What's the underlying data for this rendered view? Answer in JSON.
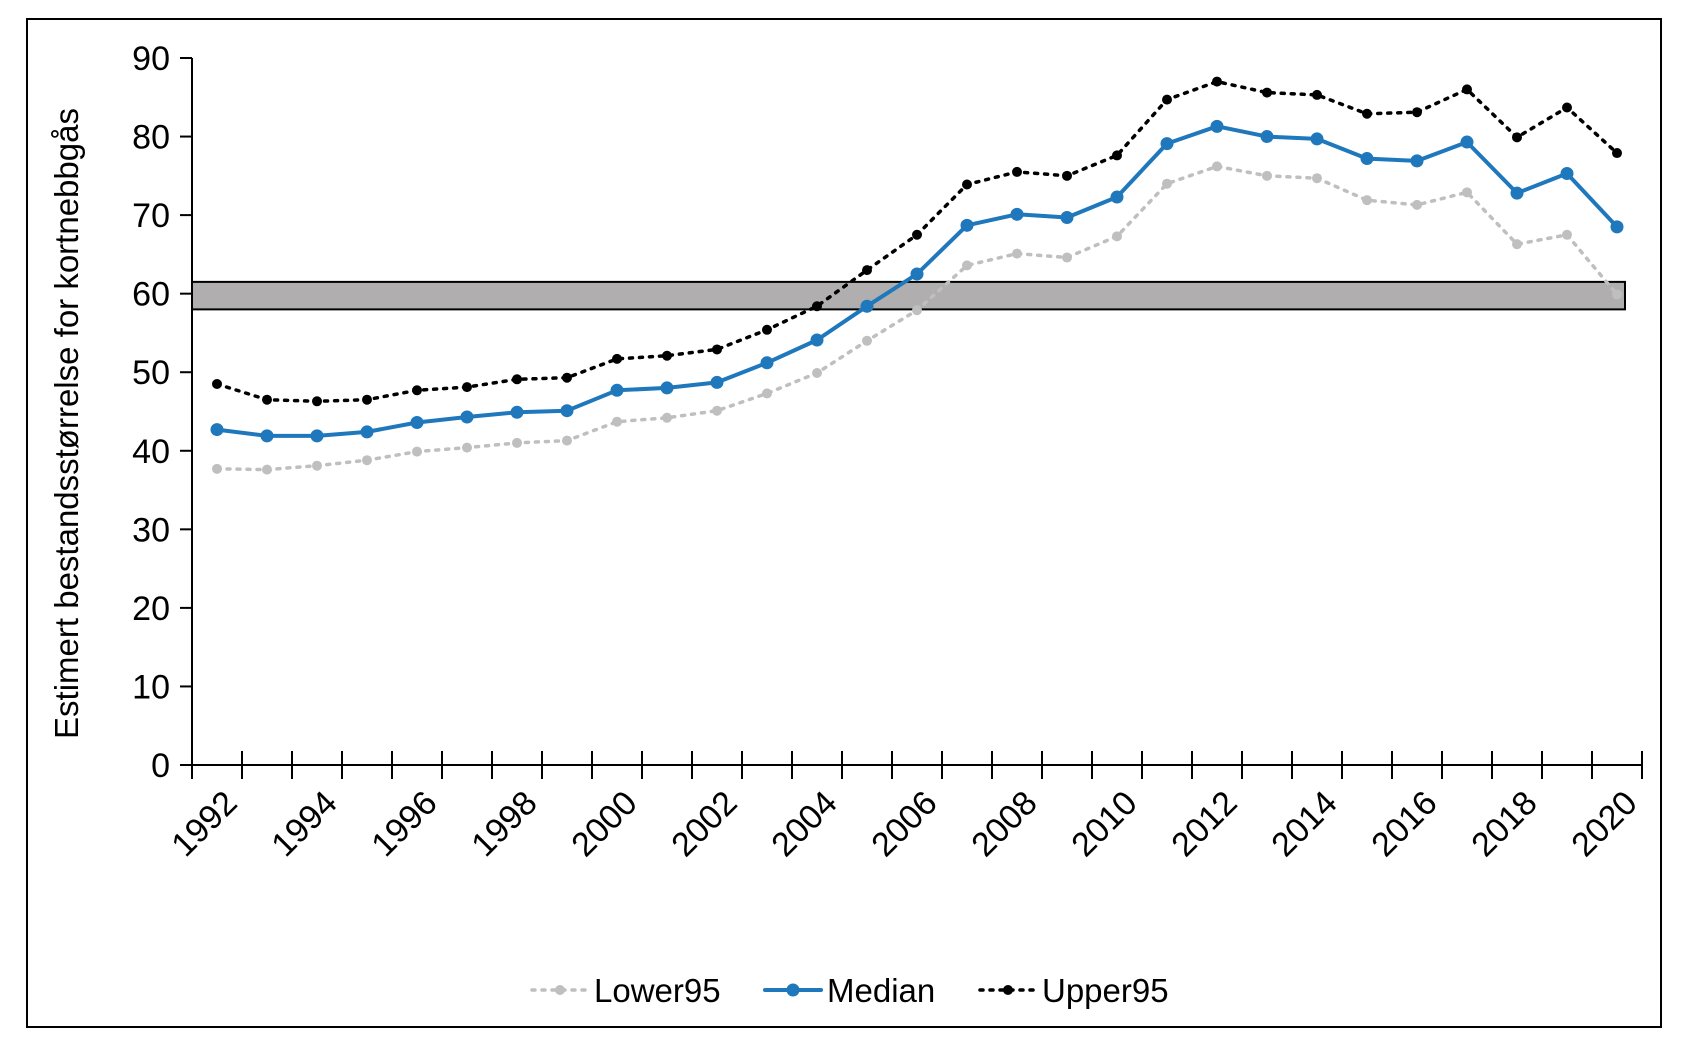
{
  "chart_data": {
    "type": "line",
    "ylabel": "Estimert bestandsstørrelse for kortnebbgås",
    "xlabel": "",
    "ylim": [
      0,
      90
    ],
    "yticks": [
      0,
      10,
      20,
      30,
      40,
      50,
      60,
      70,
      80,
      90
    ],
    "x": [
      1992,
      1993,
      1994,
      1995,
      1996,
      1997,
      1998,
      1999,
      2000,
      2001,
      2002,
      2003,
      2004,
      2005,
      2006,
      2007,
      2008,
      2009,
      2010,
      2011,
      2012,
      2013,
      2014,
      2015,
      2016,
      2017,
      2018,
      2019,
      2020
    ],
    "xtick_labels": [
      "1992",
      "1994",
      "1996",
      "1998",
      "2000",
      "2002",
      "2004",
      "2006",
      "2008",
      "2010",
      "2012",
      "2014",
      "2016",
      "2018",
      "2020"
    ],
    "grid": false,
    "legend_position": "bottom",
    "target_band": {
      "ymin": 58,
      "ymax": 61.5,
      "color": "#b0aeae"
    },
    "series": [
      {
        "name": "Lower95",
        "color": "#bfbfbf",
        "style": "dotted",
        "values": [
          37.7,
          37.6,
          38.1,
          38.8,
          39.9,
          40.4,
          41.0,
          41.3,
          43.7,
          44.2,
          45.1,
          47.3,
          49.9,
          54.0,
          57.9,
          63.6,
          65.1,
          64.6,
          67.3,
          74.0,
          76.2,
          75.0,
          74.7,
          71.9,
          71.3,
          72.9,
          66.3,
          67.5,
          59.9
        ]
      },
      {
        "name": "Median",
        "color": "#1f77bc",
        "style": "solid",
        "values": [
          42.7,
          41.9,
          41.9,
          42.4,
          43.6,
          44.3,
          44.9,
          45.1,
          47.7,
          48.0,
          48.7,
          51.2,
          54.1,
          58.4,
          62.5,
          68.7,
          70.1,
          69.7,
          72.3,
          79.1,
          81.3,
          80.0,
          79.7,
          77.2,
          76.9,
          79.3,
          72.8,
          75.3,
          68.5
        ]
      },
      {
        "name": "Upper95",
        "color": "#000000",
        "style": "dotted",
        "values": [
          48.5,
          46.5,
          46.3,
          46.5,
          47.7,
          48.1,
          49.1,
          49.3,
          51.7,
          52.1,
          52.9,
          55.4,
          58.4,
          63.0,
          67.5,
          73.9,
          75.5,
          75.0,
          77.6,
          84.7,
          87.0,
          85.6,
          85.3,
          82.9,
          83.1,
          86.0,
          79.9,
          83.7,
          77.9
        ]
      }
    ]
  }
}
